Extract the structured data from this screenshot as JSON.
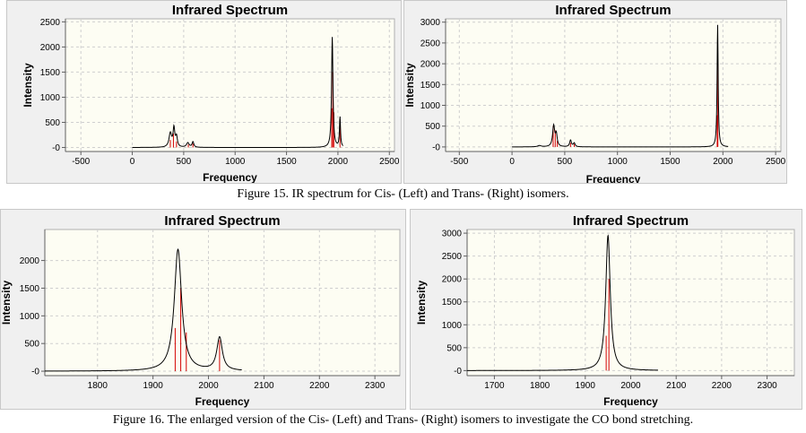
{
  "figures": [
    {
      "caption": "Figure 15. IR spectrum for Cis- (Left) and Trans- (Right) isomers."
    },
    {
      "caption": "Figure 16. The enlarged version of the Cis- (Left) and Trans- (Right) isomers to investigate the CO bond stretching."
    }
  ],
  "chart_data": [
    {
      "type": "line",
      "title": "Infrared Spectrum",
      "xlabel": "Frequency",
      "ylabel": "Intensity",
      "xlim": [
        -650,
        2550
      ],
      "ylim": [
        -80,
        2560
      ],
      "xticks": [
        -500,
        0,
        500,
        1000,
        1500,
        2000,
        2500
      ],
      "yticks": [
        0,
        500,
        1000,
        1500,
        2000,
        2500
      ],
      "curve_x_range": [
        0,
        2050
      ],
      "peaks": [
        {
          "x": 370,
          "y": 280,
          "w": 15
        },
        {
          "x": 405,
          "y": 370,
          "w": 10
        },
        {
          "x": 430,
          "y": 200,
          "w": 10
        },
        {
          "x": 540,
          "y": 90,
          "w": 15
        },
        {
          "x": 590,
          "y": 110,
          "w": 10
        },
        {
          "x": 1945,
          "y": 2200,
          "w": 8
        },
        {
          "x": 2020,
          "y": 600,
          "w": 6
        }
      ],
      "sticks": [
        {
          "x": 370,
          "y": 150
        },
        {
          "x": 400,
          "y": 280
        },
        {
          "x": 430,
          "y": 120
        },
        {
          "x": 545,
          "y": 60
        },
        {
          "x": 590,
          "y": 80
        },
        {
          "x": 1940,
          "y": 780
        },
        {
          "x": 1950,
          "y": 1500
        },
        {
          "x": 1960,
          "y": 700
        },
        {
          "x": 2020,
          "y": 560
        }
      ]
    },
    {
      "type": "line",
      "title": "Infrared Spectrum",
      "xlabel": "Frequency",
      "ylabel": "Intensity",
      "xlim": [
        -630,
        2550
      ],
      "ylim": [
        -110,
        3080
      ],
      "xticks": [
        -500,
        0,
        500,
        1000,
        1500,
        2000,
        2500
      ],
      "yticks": [
        0,
        500,
        1000,
        1500,
        2000,
        2500,
        3000
      ],
      "curve_x_range": [
        0,
        2050
      ],
      "peaks": [
        {
          "x": 260,
          "y": 30,
          "w": 20
        },
        {
          "x": 395,
          "y": 500,
          "w": 12
        },
        {
          "x": 420,
          "y": 280,
          "w": 10
        },
        {
          "x": 555,
          "y": 160,
          "w": 10
        },
        {
          "x": 590,
          "y": 90,
          "w": 10
        },
        {
          "x": 1950,
          "y": 2950,
          "w": 6
        }
      ],
      "sticks": [
        {
          "x": 390,
          "y": 500
        },
        {
          "x": 410,
          "y": 400
        },
        {
          "x": 430,
          "y": 150
        },
        {
          "x": 555,
          "y": 100
        },
        {
          "x": 590,
          "y": 70
        },
        {
          "x": 1946,
          "y": 760
        },
        {
          "x": 1952,
          "y": 2000
        }
      ]
    },
    {
      "type": "line",
      "title": "Infrared Spectrum",
      "xlabel": "Frequency",
      "ylabel": "Intensity",
      "xlim": [
        1705,
        2345
      ],
      "ylim": [
        -80,
        2560
      ],
      "xticks": [
        1800,
        1900,
        2000,
        2100,
        2200,
        2300
      ],
      "yticks": [
        0,
        500,
        1000,
        1500,
        2000
      ],
      "curve_x_range": [
        1705,
        2060
      ],
      "peaks": [
        {
          "x": 1945,
          "y": 2200,
          "w": 8
        },
        {
          "x": 2020,
          "y": 600,
          "w": 6
        }
      ],
      "sticks": [
        {
          "x": 1940,
          "y": 780
        },
        {
          "x": 1950,
          "y": 1500
        },
        {
          "x": 1960,
          "y": 700
        },
        {
          "x": 2020,
          "y": 560
        }
      ]
    },
    {
      "type": "line",
      "title": "Infrared Spectrum",
      "xlabel": "Frequency",
      "ylabel": "Intensity",
      "xlim": [
        1640,
        2360
      ],
      "ylim": [
        -110,
        3080
      ],
      "xticks": [
        1700,
        1800,
        1900,
        2000,
        2100,
        2200,
        2300
      ],
      "yticks": [
        0,
        500,
        1000,
        1500,
        2000,
        2500,
        3000
      ],
      "curve_x_range": [
        1640,
        2060
      ],
      "peaks": [
        {
          "x": 1950,
          "y": 2950,
          "w": 6
        }
      ],
      "sticks": [
        {
          "x": 1946,
          "y": 760
        },
        {
          "x": 1952,
          "y": 2000
        }
      ]
    }
  ]
}
